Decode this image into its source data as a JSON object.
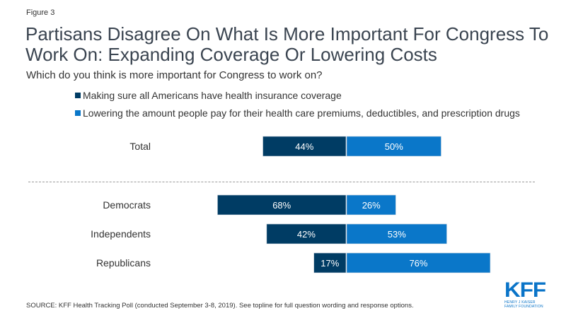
{
  "figure_label": "Figure 3",
  "header": {
    "title": "Partisans Disagree On What Is More Important For Congress To Work On: Expanding Coverage Or Lowering Costs",
    "subtitle": "Which do you think is more important for Congress to work on?"
  },
  "colors": {
    "coverage": "#003c64",
    "costs": "#0a77c9",
    "bar_border": "#cfd8e0"
  },
  "chart_data": {
    "type": "bar",
    "orientation": "horizontal-diverging",
    "title": "Partisans Disagree On What Is More Important For Congress To Work On: Expanding Coverage Or Lowering Costs",
    "subtitle": "Which do you think is more important for Congress to work on?",
    "categories": [
      "Total",
      "Democrats",
      "Independents",
      "Republicans"
    ],
    "series": [
      {
        "name": "Making sure all Americans have health insurance coverage",
        "values": [
          44,
          68,
          42,
          17
        ],
        "labels": [
          "44%",
          "68%",
          "42%",
          "17%"
        ],
        "direction": "left"
      },
      {
        "name": "Lowering the amount people pay for their health care premiums, deductibles, and prescription drugs",
        "values": [
          50,
          26,
          53,
          76
        ],
        "labels": [
          "50%",
          "26%",
          "53%",
          "76%"
        ],
        "direction": "right"
      }
    ],
    "unit": "%",
    "grid": false,
    "legend_position": "top",
    "separator_after": "Total"
  },
  "legend": [
    {
      "label": "Making sure all Americans have health insurance coverage",
      "icon": "square-swatch"
    },
    {
      "label": "Lowering the amount people pay for their health care premiums, deductibles, and prescription drugs",
      "icon": "square-swatch"
    }
  ],
  "footer": {
    "source": "SOURCE: KFF Health Tracking Poll (conducted September 3-8, 2019). See topline for full question wording and response options."
  },
  "logo": {
    "mark": "KFF",
    "line1": "HENRY J KAISER",
    "line2": "FAMILY FOUNDATION"
  }
}
